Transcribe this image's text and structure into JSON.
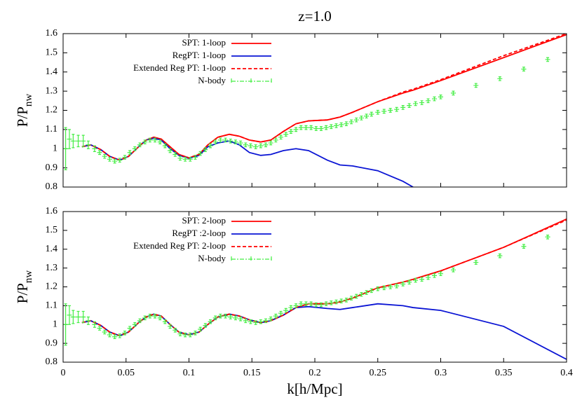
{
  "chart_data": [
    {
      "type": "line",
      "title": "z=1.0",
      "ylabel": "P/P",
      "ylabel_sub": "nw",
      "xlim": [
        0,
        0.4
      ],
      "xticks": [
        0,
        0.05,
        0.1,
        0.15,
        0.2,
        0.25,
        0.3,
        0.35,
        0.4
      ],
      "show_xticklabels": false,
      "ylim": [
        0.8,
        1.6
      ],
      "yticks": [
        0.8,
        0.9,
        1,
        1.1,
        1.2,
        1.3,
        1.4,
        1.5,
        1.6
      ],
      "x": [
        0.015,
        0.022,
        0.03,
        0.037,
        0.045,
        0.052,
        0.06,
        0.066,
        0.072,
        0.078,
        0.085,
        0.092,
        0.1,
        0.108,
        0.115,
        0.123,
        0.132,
        0.14,
        0.148,
        0.157,
        0.165,
        0.175,
        0.185,
        0.195,
        0.21,
        0.22,
        0.23,
        0.25,
        0.27,
        0.278,
        0.3,
        0.35,
        0.4
      ],
      "series": [
        {
          "name": "SPT: 1-loop",
          "color": "#ff0000",
          "dashed": false,
          "values": [
            1.01,
            1.02,
            0.995,
            0.96,
            0.94,
            0.96,
            1.01,
            1.045,
            1.06,
            1.05,
            1.01,
            0.97,
            0.952,
            0.97,
            1.02,
            1.06,
            1.075,
            1.065,
            1.045,
            1.035,
            1.045,
            1.09,
            1.13,
            1.145,
            1.15,
            1.165,
            1.19,
            1.245,
            1.29,
            1.305,
            1.355,
            1.475,
            1.595
          ]
        },
        {
          "name": "RegPT: 1-loop",
          "color": "#0a14d4",
          "dashed": false,
          "values": [
            1.01,
            1.02,
            0.995,
            0.96,
            0.94,
            0.96,
            1.01,
            1.045,
            1.055,
            1.045,
            1.0,
            0.965,
            0.95,
            0.965,
            1.01,
            1.03,
            1.04,
            1.02,
            0.98,
            0.965,
            0.97,
            0.99,
            1.0,
            0.99,
            0.94,
            0.915,
            0.91,
            0.885,
            0.83,
            0.8,
            null,
            null,
            null
          ]
        },
        {
          "name": "Extended Reg PT: 1-loop",
          "color": "#ff0000",
          "dashed": true,
          "values": [
            1.01,
            1.02,
            0.995,
            0.96,
            0.94,
            0.96,
            1.01,
            1.045,
            1.06,
            1.05,
            1.01,
            0.97,
            0.952,
            0.97,
            1.02,
            1.06,
            1.075,
            1.065,
            1.045,
            1.035,
            1.045,
            1.09,
            1.13,
            1.145,
            1.15,
            1.165,
            1.19,
            1.245,
            1.295,
            1.31,
            1.36,
            1.485,
            1.6
          ]
        },
        {
          "name": "N-body",
          "color": "#44ee44",
          "errorbars": true,
          "x": [
            0.002,
            0.005,
            0.008,
            0.012,
            0.016,
            0.02,
            0.025,
            0.029,
            0.033,
            0.037,
            0.041,
            0.045,
            0.049,
            0.053,
            0.057,
            0.061,
            0.065,
            0.069,
            0.073,
            0.077,
            0.081,
            0.085,
            0.089,
            0.093,
            0.097,
            0.101,
            0.105,
            0.109,
            0.113,
            0.117,
            0.121,
            0.125,
            0.129,
            0.133,
            0.137,
            0.141,
            0.145,
            0.149,
            0.153,
            0.157,
            0.161,
            0.165,
            0.169,
            0.173,
            0.177,
            0.181,
            0.185,
            0.189,
            0.193,
            0.197,
            0.201,
            0.205,
            0.209,
            0.213,
            0.217,
            0.221,
            0.225,
            0.229,
            0.233,
            0.237,
            0.241,
            0.245,
            0.25,
            0.255,
            0.26,
            0.265,
            0.27,
            0.275,
            0.28,
            0.285,
            0.29,
            0.295,
            0.3,
            0.31,
            0.328,
            0.347,
            0.366,
            0.385
          ],
          "values": [
            1.0,
            1.05,
            1.04,
            1.04,
            1.04,
            1.02,
            1.0,
            0.98,
            0.96,
            0.945,
            0.935,
            0.94,
            0.955,
            0.98,
            1.0,
            1.02,
            1.035,
            1.045,
            1.045,
            1.035,
            1.015,
            0.99,
            0.97,
            0.95,
            0.945,
            0.945,
            0.955,
            0.975,
            0.995,
            1.015,
            1.035,
            1.045,
            1.045,
            1.04,
            1.035,
            1.03,
            1.02,
            1.015,
            1.01,
            1.015,
            1.02,
            1.03,
            1.045,
            1.06,
            1.075,
            1.09,
            1.1,
            1.11,
            1.11,
            1.11,
            1.105,
            1.105,
            1.11,
            1.115,
            1.12,
            1.125,
            1.13,
            1.14,
            1.15,
            1.16,
            1.17,
            1.18,
            1.19,
            1.195,
            1.2,
            1.205,
            1.215,
            1.225,
            1.235,
            1.24,
            1.25,
            1.26,
            1.27,
            1.29,
            1.33,
            1.365,
            1.415,
            1.465
          ],
          "errors": [
            0.11,
            0.05,
            0.035,
            0.03,
            0.03,
            0.02,
            0.015,
            0.01,
            0.01,
            0.01,
            0.01,
            0.01,
            0.01,
            0.01,
            0.01,
            0.01,
            0.01,
            0.01,
            0.01,
            0.01,
            0.01,
            0.01,
            0.01,
            0.01,
            0.01,
            0.01,
            0.01,
            0.01,
            0.01,
            0.01,
            0.01,
            0.01,
            0.01,
            0.01,
            0.01,
            0.01,
            0.01,
            0.01,
            0.01,
            0.01,
            0.01,
            0.01,
            0.01,
            0.01,
            0.01,
            0.01,
            0.01,
            0.01,
            0.01,
            0.01,
            0.01,
            0.01,
            0.01,
            0.01,
            0.01,
            0.01,
            0.01,
            0.01,
            0.01,
            0.01,
            0.01,
            0.01,
            0.01,
            0.01,
            0.01,
            0.01,
            0.01,
            0.01,
            0.01,
            0.01,
            0.01,
            0.01,
            0.01,
            0.01,
            0.01,
            0.01,
            0.01,
            0.01
          ]
        }
      ]
    },
    {
      "type": "line",
      "ylabel": "P/P",
      "ylabel_sub": "nw",
      "xlabel": "k[h/Mpc]",
      "xlim": [
        0,
        0.4
      ],
      "xticks": [
        0,
        0.05,
        0.1,
        0.15,
        0.2,
        0.25,
        0.3,
        0.35,
        0.4
      ],
      "show_xticklabels": true,
      "ylim": [
        0.8,
        1.6
      ],
      "yticks": [
        0.8,
        0.9,
        1,
        1.1,
        1.2,
        1.3,
        1.4,
        1.5,
        1.6
      ],
      "x": [
        0.015,
        0.022,
        0.03,
        0.037,
        0.045,
        0.052,
        0.06,
        0.066,
        0.072,
        0.078,
        0.085,
        0.092,
        0.1,
        0.108,
        0.115,
        0.123,
        0.132,
        0.14,
        0.148,
        0.157,
        0.165,
        0.175,
        0.185,
        0.195,
        0.21,
        0.22,
        0.23,
        0.25,
        0.27,
        0.278,
        0.3,
        0.35,
        0.4
      ],
      "series": [
        {
          "name": "SPT: 2-loop",
          "color": "#ff0000",
          "dashed": false,
          "values": [
            1.01,
            1.02,
            0.995,
            0.96,
            0.94,
            0.96,
            1.01,
            1.04,
            1.055,
            1.045,
            1.0,
            0.96,
            0.945,
            0.96,
            1.0,
            1.04,
            1.055,
            1.045,
            1.025,
            1.01,
            1.02,
            1.05,
            1.09,
            1.11,
            1.11,
            1.12,
            1.14,
            1.195,
            1.225,
            1.24,
            1.285,
            1.41,
            1.56
          ]
        },
        {
          "name": "RegPT :2-loop",
          "color": "#0a14d4",
          "dashed": false,
          "values": [
            1.01,
            1.02,
            0.995,
            0.96,
            0.94,
            0.96,
            1.01,
            1.04,
            1.055,
            1.045,
            1.0,
            0.96,
            0.945,
            0.96,
            1.0,
            1.04,
            1.055,
            1.045,
            1.025,
            1.01,
            1.02,
            1.05,
            1.09,
            1.095,
            1.085,
            1.08,
            1.09,
            1.11,
            1.1,
            1.09,
            1.075,
            0.99,
            0.815
          ]
        },
        {
          "name": "Extended Reg PT: 2-loop",
          "color": "#ff0000",
          "dashed": true,
          "values": [
            1.01,
            1.02,
            0.995,
            0.96,
            0.94,
            0.96,
            1.01,
            1.04,
            1.055,
            1.045,
            1.0,
            0.96,
            0.945,
            0.96,
            1.0,
            1.04,
            1.055,
            1.045,
            1.025,
            1.01,
            1.02,
            1.05,
            1.09,
            1.11,
            1.11,
            1.12,
            1.14,
            1.195,
            1.225,
            1.24,
            1.285,
            1.41,
            1.555
          ]
        },
        {
          "name": "N-body",
          "color": "#44ee44",
          "errorbars": true,
          "x": [
            0.002,
            0.005,
            0.008,
            0.012,
            0.016,
            0.02,
            0.025,
            0.029,
            0.033,
            0.037,
            0.041,
            0.045,
            0.049,
            0.053,
            0.057,
            0.061,
            0.065,
            0.069,
            0.073,
            0.077,
            0.081,
            0.085,
            0.089,
            0.093,
            0.097,
            0.101,
            0.105,
            0.109,
            0.113,
            0.117,
            0.121,
            0.125,
            0.129,
            0.133,
            0.137,
            0.141,
            0.145,
            0.149,
            0.153,
            0.157,
            0.161,
            0.165,
            0.169,
            0.173,
            0.177,
            0.181,
            0.185,
            0.189,
            0.193,
            0.197,
            0.201,
            0.205,
            0.209,
            0.213,
            0.217,
            0.221,
            0.225,
            0.229,
            0.233,
            0.237,
            0.241,
            0.245,
            0.25,
            0.255,
            0.26,
            0.265,
            0.27,
            0.275,
            0.28,
            0.285,
            0.29,
            0.295,
            0.3,
            0.31,
            0.328,
            0.347,
            0.366,
            0.385
          ],
          "values": [
            1.0,
            1.05,
            1.04,
            1.04,
            1.04,
            1.02,
            1.0,
            0.98,
            0.96,
            0.945,
            0.935,
            0.94,
            0.955,
            0.98,
            1.0,
            1.02,
            1.035,
            1.045,
            1.045,
            1.035,
            1.015,
            0.99,
            0.97,
            0.95,
            0.945,
            0.945,
            0.955,
            0.975,
            0.995,
            1.015,
            1.035,
            1.045,
            1.045,
            1.04,
            1.035,
            1.03,
            1.02,
            1.015,
            1.01,
            1.015,
            1.02,
            1.03,
            1.045,
            1.06,
            1.075,
            1.09,
            1.1,
            1.11,
            1.11,
            1.11,
            1.105,
            1.105,
            1.11,
            1.115,
            1.12,
            1.125,
            1.13,
            1.14,
            1.15,
            1.16,
            1.17,
            1.18,
            1.19,
            1.195,
            1.2,
            1.205,
            1.215,
            1.225,
            1.235,
            1.24,
            1.25,
            1.26,
            1.27,
            1.29,
            1.33,
            1.365,
            1.415,
            1.465
          ],
          "errors": [
            0.11,
            0.05,
            0.035,
            0.03,
            0.03,
            0.02,
            0.015,
            0.01,
            0.01,
            0.01,
            0.01,
            0.01,
            0.01,
            0.01,
            0.01,
            0.01,
            0.01,
            0.01,
            0.01,
            0.01,
            0.01,
            0.01,
            0.01,
            0.01,
            0.01,
            0.01,
            0.01,
            0.01,
            0.01,
            0.01,
            0.01,
            0.01,
            0.01,
            0.01,
            0.01,
            0.01,
            0.01,
            0.01,
            0.01,
            0.01,
            0.01,
            0.01,
            0.01,
            0.01,
            0.01,
            0.01,
            0.01,
            0.01,
            0.01,
            0.01,
            0.01,
            0.01,
            0.01,
            0.01,
            0.01,
            0.01,
            0.01,
            0.01,
            0.01,
            0.01,
            0.01,
            0.01,
            0.01,
            0.01,
            0.01,
            0.01,
            0.01,
            0.01,
            0.01,
            0.01,
            0.01,
            0.01,
            0.01,
            0.01,
            0.01,
            0.01,
            0.01,
            0.01
          ]
        }
      ]
    }
  ]
}
